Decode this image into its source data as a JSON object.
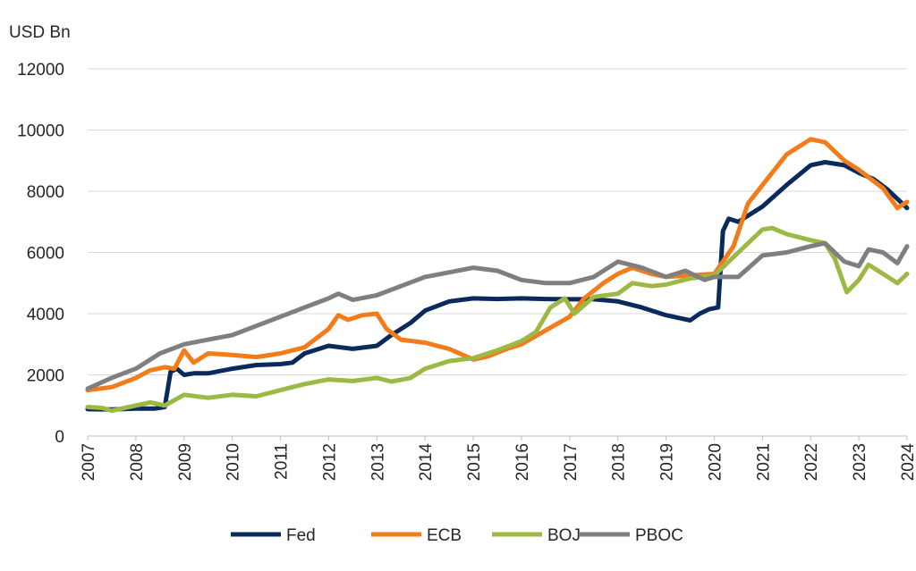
{
  "chart_data": {
    "type": "line",
    "title": "",
    "ylabel": "USD Bn",
    "xlabel": "",
    "ylim": [
      0,
      12000
    ],
    "xlim": [
      2007,
      2024
    ],
    "yticks": [
      "0",
      "2000",
      "4000",
      "6000",
      "8000",
      "10000",
      "12000"
    ],
    "xticks": [
      "2007",
      "2008",
      "2009",
      "2010",
      "2011",
      "2012",
      "2013",
      "2014",
      "2015",
      "2016",
      "2017",
      "2018",
      "2019",
      "2020",
      "2021",
      "2022",
      "2023",
      "2024"
    ],
    "grid": "horizontal",
    "legend_position": "bottom",
    "series": [
      {
        "name": "Fed",
        "color": "#0a2a5e",
        "points": [
          [
            2007,
            880
          ],
          [
            2007.5,
            870
          ],
          [
            2008,
            900
          ],
          [
            2008.4,
            900
          ],
          [
            2008.6,
            950
          ],
          [
            2008.72,
            2100
          ],
          [
            2008.85,
            2200
          ],
          [
            2009,
            2000
          ],
          [
            2009.2,
            2050
          ],
          [
            2009.5,
            2050
          ],
          [
            2010,
            2200
          ],
          [
            2010.5,
            2320
          ],
          [
            2011,
            2350
          ],
          [
            2011.25,
            2400
          ],
          [
            2011.5,
            2700
          ],
          [
            2012,
            2950
          ],
          [
            2012.5,
            2850
          ],
          [
            2013,
            2950
          ],
          [
            2013.3,
            3300
          ],
          [
            2013.7,
            3700
          ],
          [
            2014,
            4100
          ],
          [
            2014.5,
            4400
          ],
          [
            2015,
            4500
          ],
          [
            2015.5,
            4480
          ],
          [
            2016,
            4500
          ],
          [
            2016.5,
            4480
          ],
          [
            2017,
            4470
          ],
          [
            2017.5,
            4470
          ],
          [
            2018,
            4400
          ],
          [
            2018.5,
            4200
          ],
          [
            2019,
            3950
          ],
          [
            2019.5,
            3780
          ],
          [
            2019.7,
            4000
          ],
          [
            2019.9,
            4150
          ],
          [
            2020.08,
            4200
          ],
          [
            2020.18,
            6700
          ],
          [
            2020.3,
            7100
          ],
          [
            2020.5,
            7000
          ],
          [
            2021,
            7500
          ],
          [
            2021.5,
            8200
          ],
          [
            2022,
            8850
          ],
          [
            2022.3,
            8950
          ],
          [
            2022.7,
            8850
          ],
          [
            2023,
            8600
          ],
          [
            2023.3,
            8400
          ],
          [
            2023.6,
            8050
          ],
          [
            2024,
            7450
          ]
        ]
      },
      {
        "name": "ECB",
        "color": "#f27c1a",
        "points": [
          [
            2007,
            1500
          ],
          [
            2007.5,
            1600
          ],
          [
            2008,
            1900
          ],
          [
            2008.3,
            2150
          ],
          [
            2008.6,
            2250
          ],
          [
            2008.8,
            2200
          ],
          [
            2009,
            2800
          ],
          [
            2009.2,
            2400
          ],
          [
            2009.5,
            2700
          ],
          [
            2010,
            2650
          ],
          [
            2010.5,
            2580
          ],
          [
            2011,
            2700
          ],
          [
            2011.5,
            2900
          ],
          [
            2012,
            3500
          ],
          [
            2012.2,
            3950
          ],
          [
            2012.4,
            3800
          ],
          [
            2012.7,
            3950
          ],
          [
            2013,
            4000
          ],
          [
            2013.2,
            3500
          ],
          [
            2013.5,
            3150
          ],
          [
            2014,
            3050
          ],
          [
            2014.5,
            2850
          ],
          [
            2015,
            2500
          ],
          [
            2015.3,
            2600
          ],
          [
            2015.7,
            2850
          ],
          [
            2016,
            3000
          ],
          [
            2016.5,
            3450
          ],
          [
            2017,
            3900
          ],
          [
            2017.3,
            4500
          ],
          [
            2017.7,
            5000
          ],
          [
            2018,
            5300
          ],
          [
            2018.3,
            5500
          ],
          [
            2018.7,
            5300
          ],
          [
            2019,
            5200
          ],
          [
            2019.5,
            5250
          ],
          [
            2020,
            5300
          ],
          [
            2020.4,
            6200
          ],
          [
            2020.7,
            7600
          ],
          [
            2021,
            8200
          ],
          [
            2021.5,
            9200
          ],
          [
            2022,
            9700
          ],
          [
            2022.3,
            9600
          ],
          [
            2022.7,
            9000
          ],
          [
            2023,
            8700
          ],
          [
            2023.5,
            8100
          ],
          [
            2023.8,
            7450
          ],
          [
            2024,
            7650
          ]
        ]
      },
      {
        "name": "BOJ",
        "color": "#9bb944",
        "points": [
          [
            2007,
            950
          ],
          [
            2007.3,
            920
          ],
          [
            2007.5,
            830
          ],
          [
            2008,
            1000
          ],
          [
            2008.3,
            1100
          ],
          [
            2008.6,
            1000
          ],
          [
            2009,
            1350
          ],
          [
            2009.5,
            1250
          ],
          [
            2010,
            1350
          ],
          [
            2010.5,
            1300
          ],
          [
            2011,
            1500
          ],
          [
            2011.5,
            1700
          ],
          [
            2012,
            1850
          ],
          [
            2012.5,
            1800
          ],
          [
            2013,
            1900
          ],
          [
            2013.3,
            1780
          ],
          [
            2013.7,
            1900
          ],
          [
            2014,
            2200
          ],
          [
            2014.5,
            2450
          ],
          [
            2015,
            2550
          ],
          [
            2015.5,
            2800
          ],
          [
            2016,
            3100
          ],
          [
            2016.3,
            3400
          ],
          [
            2016.6,
            4200
          ],
          [
            2016.9,
            4500
          ],
          [
            2017.1,
            4000
          ],
          [
            2017.5,
            4550
          ],
          [
            2018,
            4650
          ],
          [
            2018.3,
            5000
          ],
          [
            2018.7,
            4900
          ],
          [
            2019,
            4950
          ],
          [
            2019.5,
            5150
          ],
          [
            2020,
            5250
          ],
          [
            2020.5,
            6000
          ],
          [
            2021,
            6750
          ],
          [
            2021.2,
            6800
          ],
          [
            2021.5,
            6600
          ],
          [
            2022,
            6400
          ],
          [
            2022.3,
            6300
          ],
          [
            2022.5,
            5800
          ],
          [
            2022.75,
            4700
          ],
          [
            2023,
            5100
          ],
          [
            2023.2,
            5600
          ],
          [
            2023.5,
            5300
          ],
          [
            2023.8,
            5000
          ],
          [
            2024,
            5300
          ]
        ]
      },
      {
        "name": "PBOC",
        "color": "#7f7f7f",
        "points": [
          [
            2007,
            1550
          ],
          [
            2007.5,
            1900
          ],
          [
            2008,
            2200
          ],
          [
            2008.5,
            2700
          ],
          [
            2009,
            3000
          ],
          [
            2009.5,
            3150
          ],
          [
            2010,
            3300
          ],
          [
            2010.5,
            3600
          ],
          [
            2011,
            3900
          ],
          [
            2011.5,
            4200
          ],
          [
            2012,
            4500
          ],
          [
            2012.2,
            4650
          ],
          [
            2012.5,
            4450
          ],
          [
            2013,
            4600
          ],
          [
            2013.5,
            4900
          ],
          [
            2014,
            5200
          ],
          [
            2014.5,
            5350
          ],
          [
            2015,
            5500
          ],
          [
            2015.5,
            5400
          ],
          [
            2016,
            5100
          ],
          [
            2016.5,
            5000
          ],
          [
            2017,
            5000
          ],
          [
            2017.5,
            5200
          ],
          [
            2018,
            5700
          ],
          [
            2018.5,
            5500
          ],
          [
            2019,
            5200
          ],
          [
            2019.4,
            5400
          ],
          [
            2019.8,
            5100
          ],
          [
            2020,
            5200
          ],
          [
            2020.5,
            5200
          ],
          [
            2021,
            5900
          ],
          [
            2021.5,
            6000
          ],
          [
            2022,
            6200
          ],
          [
            2022.3,
            6300
          ],
          [
            2022.7,
            5700
          ],
          [
            2023,
            5550
          ],
          [
            2023.2,
            6100
          ],
          [
            2023.5,
            6000
          ],
          [
            2023.8,
            5650
          ],
          [
            2024,
            6200
          ]
        ]
      }
    ]
  }
}
